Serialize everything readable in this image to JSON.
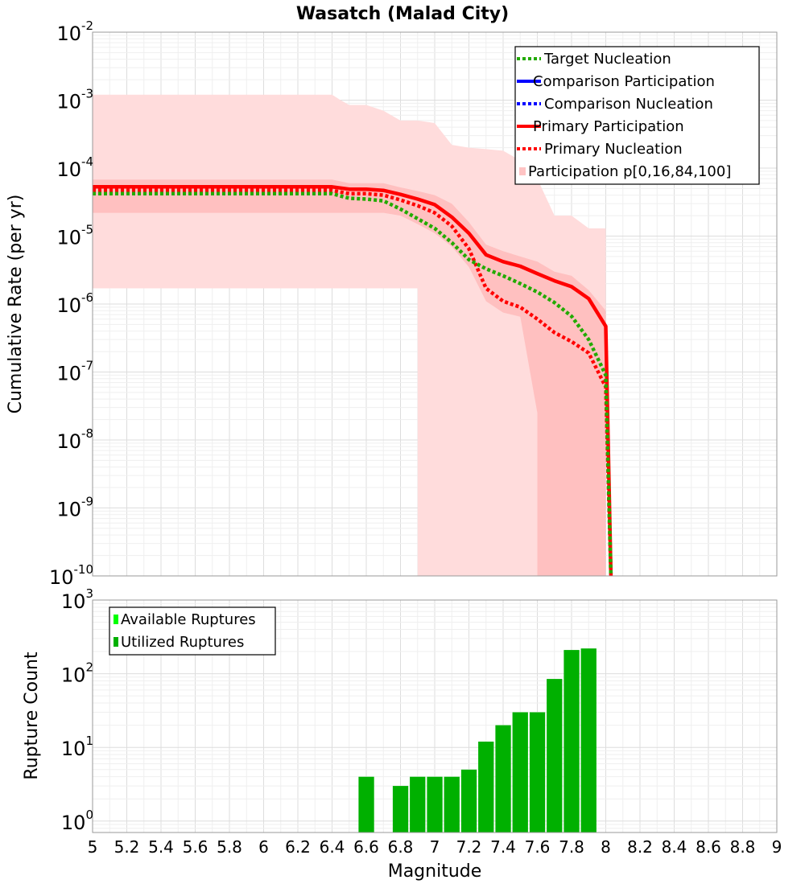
{
  "chart_data": [
    {
      "type": "line",
      "title": "Wasatch (Malad City)",
      "xlabel": "Magnitude",
      "ylabel": "Cumulative Rate (per yr)",
      "yscale": "log",
      "xlim": [
        5,
        9
      ],
      "ylim": [
        1e-10,
        0.01
      ],
      "y_tick_exponents": [
        -2,
        -3,
        -4,
        -5,
        -6,
        -7,
        -8,
        -9,
        -10
      ],
      "legend": [
        {
          "label": "Target Nucleation",
          "color": "#22aa00",
          "style": "dotted"
        },
        {
          "label": "Comparison Participation",
          "color": "#0000ff",
          "style": "solid"
        },
        {
          "label": "Comparison Nucleation",
          "color": "#0000ff",
          "style": "dotted"
        },
        {
          "label": "Primary Participation",
          "color": "#ff0000",
          "style": "solid"
        },
        {
          "label": "Primary Nucleation",
          "color": "#ff0000",
          "style": "dotted"
        },
        {
          "label": "Participation p[0,16,84,100]",
          "color": "#ffc4c4",
          "style": "band"
        }
      ],
      "band_outer": {
        "x": [
          5.0,
          6.4,
          6.45,
          6.5,
          6.6,
          6.7,
          6.8,
          6.9,
          6.9,
          6.95,
          7.0,
          7.1,
          7.2,
          7.3,
          7.4,
          7.5,
          7.6,
          7.7,
          7.8,
          7.9,
          8.0,
          8.0
        ],
        "upper": [
          0.0012,
          0.0012,
          0.001,
          0.00085,
          0.00085,
          0.0007,
          0.0005,
          0.0005,
          0.0005,
          0.00048,
          0.00046,
          0.00022,
          0.0002,
          0.00019,
          0.00018,
          0.00013,
          7e-05,
          2e-05,
          2e-05,
          1.3e-05,
          1.3e-05,
          1e-10
        ],
        "lower": [
          1.7e-06,
          1.7e-06,
          1.7e-06,
          1.7e-06,
          1.7e-06,
          1.7e-06,
          1.7e-06,
          1.7e-06,
          1e-10,
          1e-10,
          1e-10,
          1e-10,
          1e-10,
          1e-10,
          1e-10,
          1e-10,
          1e-10,
          1e-10,
          1e-10,
          1e-10,
          1e-10,
          1e-10
        ]
      },
      "band_inner": {
        "x": [
          5.0,
          6.4,
          6.5,
          6.6,
          6.7,
          6.8,
          6.9,
          7.0,
          7.1,
          7.2,
          7.3,
          7.4,
          7.5,
          7.6,
          7.6,
          7.7,
          7.8,
          7.9,
          8.0,
          8.0
        ],
        "upper": [
          6.8e-05,
          6.8e-05,
          6e-05,
          6e-05,
          6e-05,
          5.2e-05,
          4.6e-05,
          4e-05,
          3e-05,
          1.6e-05,
          7.5e-06,
          6e-06,
          5e-06,
          4.2e-06,
          4.2e-06,
          3e-06,
          2.6e-06,
          1.6e-06,
          8e-07,
          1e-10
        ],
        "lower": [
          2.2e-05,
          2.2e-05,
          2.2e-05,
          2.2e-05,
          2.2e-05,
          2e-05,
          1.5e-05,
          1.1e-05,
          7e-06,
          3.5e-06,
          1.1e-06,
          7.5e-07,
          6.5e-07,
          2.5e-08,
          1e-10,
          1e-10,
          1e-10,
          1e-10,
          1e-10,
          1e-10
        ]
      },
      "series": [
        {
          "name": "Primary Participation",
          "color": "#ff0000",
          "style": "solid",
          "x": [
            5.0,
            6.4,
            6.5,
            6.6,
            6.7,
            6.8,
            6.9,
            7.0,
            7.1,
            7.2,
            7.3,
            7.4,
            7.5,
            7.6,
            7.7,
            7.8,
            7.9,
            8.0,
            8.03
          ],
          "values": [
            5.3e-05,
            5.3e-05,
            4.9e-05,
            4.9e-05,
            4.7e-05,
            4.1e-05,
            3.5e-05,
            2.9e-05,
            1.9e-05,
            1.1e-05,
            5.3e-06,
            4.2e-06,
            3.6e-06,
            2.8e-06,
            2.2e-06,
            1.8e-06,
            1.2e-06,
            4.7e-07,
            1e-10
          ]
        },
        {
          "name": "Primary Nucleation",
          "color": "#ff0000",
          "style": "dotted",
          "x": [
            5.0,
            6.4,
            6.5,
            6.6,
            6.7,
            6.8,
            6.9,
            7.0,
            7.1,
            7.2,
            7.3,
            7.4,
            7.5,
            7.6,
            7.7,
            7.8,
            7.9,
            8.0,
            8.03
          ],
          "values": [
            4.7e-05,
            4.7e-05,
            4.2e-05,
            4.2e-05,
            4e-05,
            3.4e-05,
            2.8e-05,
            2.2e-05,
            1.4e-05,
            6.5e-06,
            1.7e-06,
            1.1e-06,
            9e-07,
            6e-07,
            3.8e-07,
            2.8e-07,
            1.9e-07,
            6e-08,
            1e-10
          ]
        },
        {
          "name": "Target Nucleation",
          "color": "#22aa00",
          "style": "dotted",
          "x": [
            5.0,
            6.4,
            6.5,
            6.6,
            6.7,
            6.8,
            6.9,
            7.0,
            7.1,
            7.2,
            7.3,
            7.4,
            7.5,
            7.6,
            7.7,
            7.8,
            7.9,
            8.0,
            8.03
          ],
          "values": [
            4.2e-05,
            4.2e-05,
            3.6e-05,
            3.5e-05,
            3.3e-05,
            2.5e-05,
            1.8e-05,
            1.3e-05,
            8e-06,
            4.5e-06,
            3.3e-06,
            2.6e-06,
            2e-06,
            1.5e-06,
            1.05e-06,
            6.6e-07,
            3e-07,
            9e-08,
            1e-10
          ]
        }
      ]
    },
    {
      "type": "bar",
      "xlabel": "Magnitude",
      "ylabel": "Rupture Count",
      "yscale": "log",
      "xlim": [
        5,
        9
      ],
      "ylim": [
        0.7,
        1000
      ],
      "y_tick_exponents": [
        3,
        2,
        1,
        0
      ],
      "x_ticks": [
        "5",
        "5.2",
        "5.4",
        "5.6",
        "5.8",
        "6",
        "6.2",
        "6.4",
        "6.6",
        "6.8",
        "7",
        "7.2",
        "7.4",
        "7.6",
        "7.8",
        "8",
        "8.2",
        "8.4",
        "8.6",
        "8.8",
        "9"
      ],
      "legend": [
        {
          "label": "Available Ruptures",
          "color": "#00ff00"
        },
        {
          "label": "Utilized Ruptures",
          "color": "#00b000"
        }
      ],
      "bar_color": "#00b000",
      "x": [
        6.6,
        6.8,
        6.9,
        7.0,
        7.1,
        7.2,
        7.3,
        7.4,
        7.5,
        7.6,
        7.7,
        7.8,
        7.9
      ],
      "values": [
        4,
        3,
        4,
        4,
        4,
        5,
        12,
        20,
        30,
        30,
        85,
        210,
        220
      ]
    }
  ]
}
